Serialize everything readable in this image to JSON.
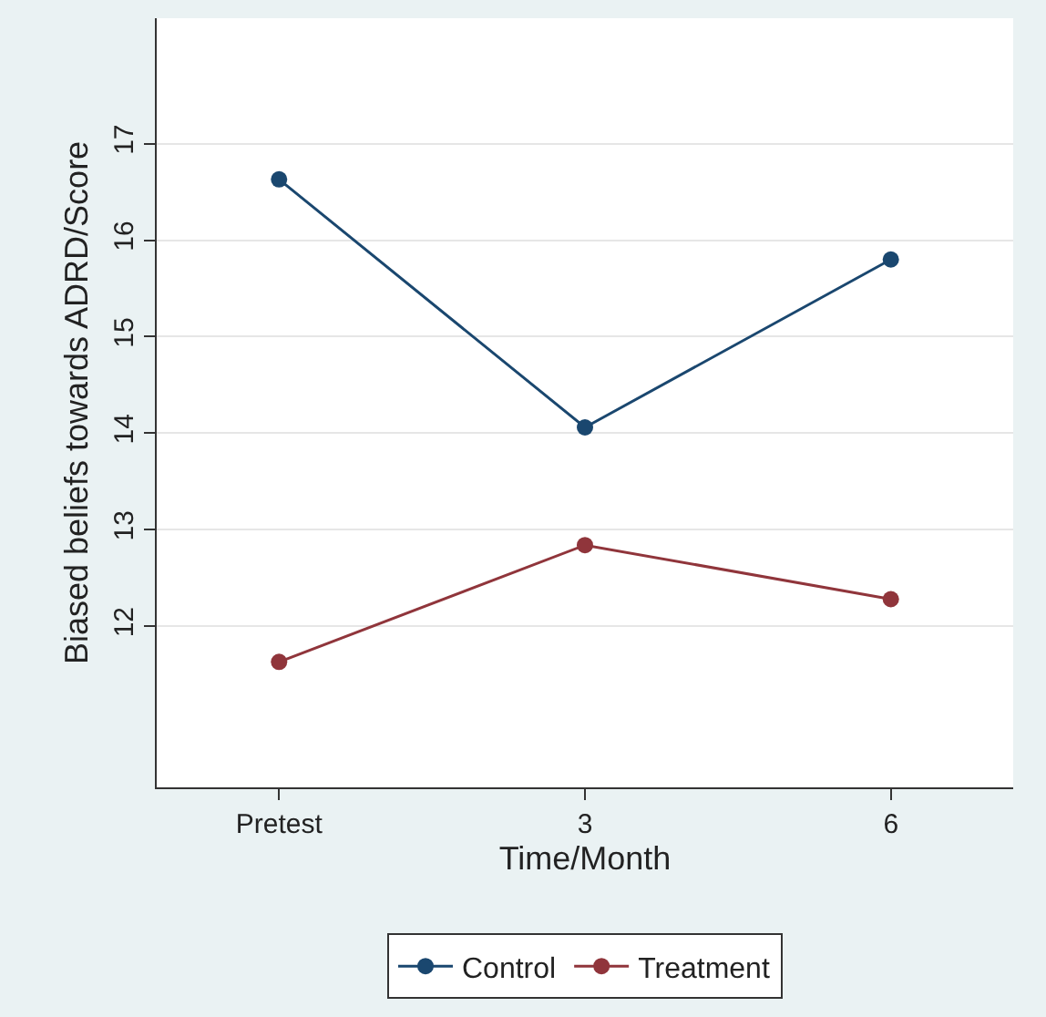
{
  "chart_data": {
    "type": "line",
    "xlabel": "Time/Month",
    "ylabel": "Biased beliefs towards ADRD/Score",
    "categories": [
      "Pretest",
      "3",
      "6"
    ],
    "series": [
      {
        "name": "Control",
        "color": "#1a476f",
        "values": [
          16.63,
          14.06,
          15.8
        ]
      },
      {
        "name": "Treatment",
        "color": "#90353b",
        "values": [
          11.63,
          12.84,
          12.28
        ]
      }
    ],
    "ylim": [
      10.33,
      18.3
    ],
    "yticks": [
      12,
      13,
      14,
      15,
      16,
      17
    ],
    "grid": "y",
    "legend": "bottom",
    "marker": "circle",
    "line_style": "solid"
  }
}
